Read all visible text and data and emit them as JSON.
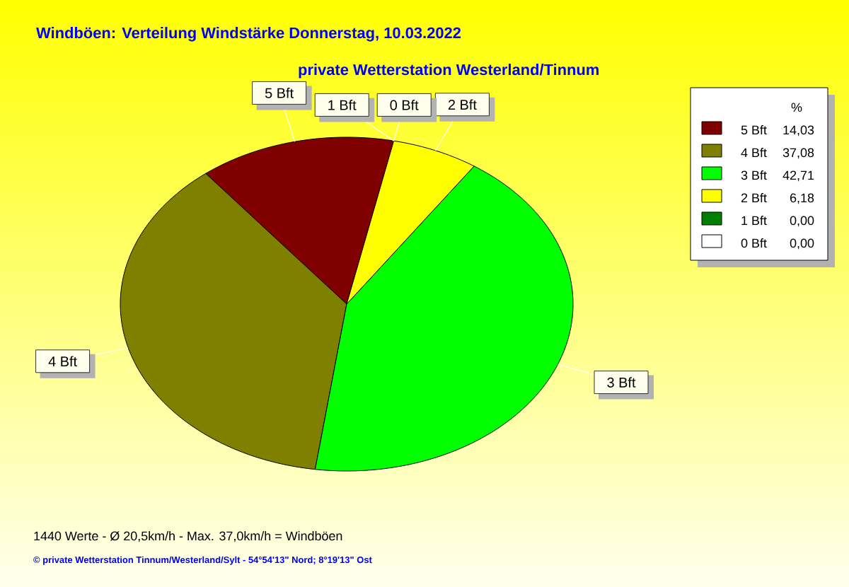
{
  "chart_data": {
    "type": "pie",
    "title": "Windböen: Verteilung Windstärke  Donnerstag, 10.03.2022",
    "subtitle": "private Wetterstation Westerland/Tinnum",
    "categories": [
      "5 Bft",
      "4 Bft",
      "3 Bft",
      "2 Bft",
      "1 Bft",
      "0 Bft"
    ],
    "values": [
      14.03,
      37.08,
      42.71,
      6.18,
      0,
      0
    ],
    "value_labels": [
      "14,03",
      "37,08",
      "42,71",
      "6,18",
      "0,00",
      "0,00"
    ],
    "colors": [
      "#800000",
      "#808000",
      "#00ff00",
      "#ffff00",
      "#008000",
      "#ffffff"
    ],
    "legend": "top right",
    "legend_title": "%",
    "annotations": [
      "1440 Werte   -   Ø 20,5km/h  -  Max. 37,0km/h = Windböen",
      "© private Wetterstation Tinnum/Westerland/Sylt   -   54°54'13\" Nord; 8°19'13\" Ost"
    ]
  }
}
